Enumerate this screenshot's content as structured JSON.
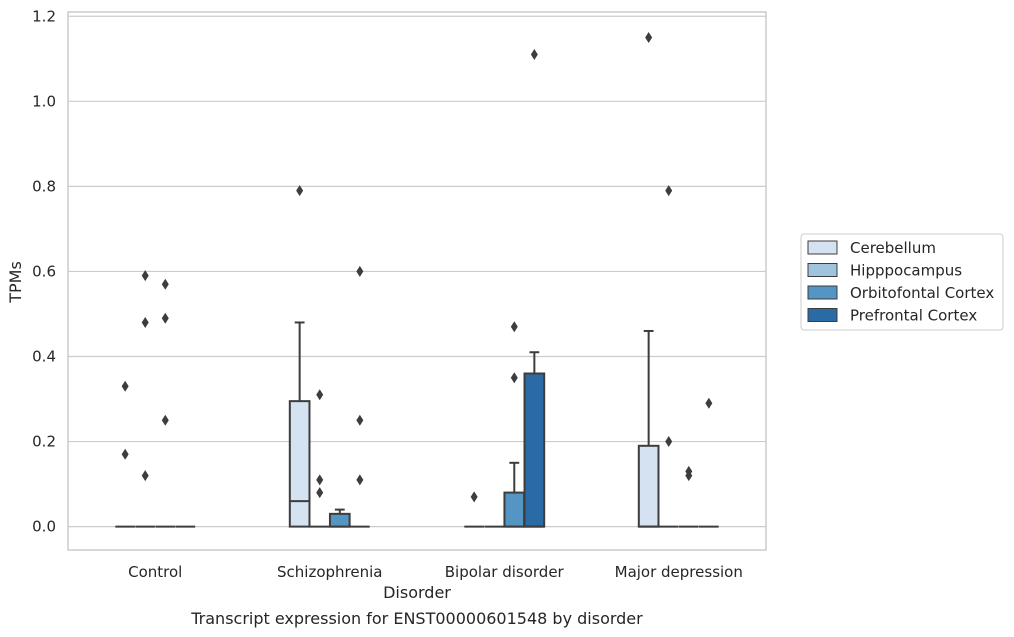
{
  "chart_data": {
    "type": "box",
    "xlabel": "Disorder",
    "ylabel": "TPMs",
    "caption": "Transcript expression for ENST00000601548 by disorder",
    "categories": [
      "Control",
      "Schizophrenia",
      "Bipolar disorder",
      "Major depression"
    ],
    "ylim": [
      -0.055,
      1.21
    ],
    "yticks": [
      0.0,
      0.2,
      0.4,
      0.6,
      0.8,
      1.0,
      1.2
    ],
    "ytick_labels": [
      "0.0",
      "0.2",
      "0.4",
      "0.6",
      "0.8",
      "1.0",
      "1.2"
    ],
    "grid": "horizontal",
    "legend_position": "right",
    "series": [
      {
        "name": "Cerebellum",
        "color": "#d4e2f1",
        "boxes": [
          {
            "q1": 0,
            "median": 0,
            "q3": 0,
            "whislo": 0,
            "whishi": 0,
            "fliers": [
              0.33,
              0.17
            ]
          },
          {
            "q1": 0,
            "median": 0.06,
            "q3": 0.295,
            "whislo": 0,
            "whishi": 0.48,
            "fliers": [
              0.79
            ]
          },
          {
            "q1": 0,
            "median": 0,
            "q3": 0,
            "whislo": 0,
            "whishi": 0,
            "fliers": [
              0.07
            ]
          },
          {
            "q1": 0,
            "median": 0,
            "q3": 0.19,
            "whislo": 0,
            "whishi": 0.46,
            "fliers": [
              1.15
            ]
          }
        ]
      },
      {
        "name": "Hipppocampus",
        "color": "#9fc4de",
        "boxes": [
          {
            "q1": 0,
            "median": 0,
            "q3": 0,
            "whislo": 0,
            "whishi": 0,
            "fliers": [
              0.59,
              0.48,
              0.12
            ]
          },
          {
            "q1": 0,
            "median": 0,
            "q3": 0,
            "whislo": 0,
            "whishi": 0,
            "fliers": [
              0.31,
              0.11,
              0.08
            ]
          },
          {
            "q1": 0,
            "median": 0,
            "q3": 0,
            "whislo": 0,
            "whishi": 0,
            "fliers": []
          },
          {
            "q1": 0,
            "median": 0,
            "q3": 0,
            "whislo": 0,
            "whishi": 0,
            "fliers": [
              0.79,
              0.2
            ]
          }
        ]
      },
      {
        "name": "Orbitofontal Cortex",
        "color": "#5595c4",
        "boxes": [
          {
            "q1": 0,
            "median": 0,
            "q3": 0,
            "whislo": 0,
            "whishi": 0,
            "fliers": [
              0.57,
              0.49,
              0.25
            ]
          },
          {
            "q1": 0,
            "median": 0,
            "q3": 0.03,
            "whislo": 0,
            "whishi": 0.04,
            "fliers": []
          },
          {
            "q1": 0,
            "median": 0,
            "q3": 0.08,
            "whislo": 0,
            "whishi": 0.15,
            "fliers": [
              0.47,
              0.35
            ]
          },
          {
            "q1": 0,
            "median": 0,
            "q3": 0,
            "whislo": 0,
            "whishi": 0,
            "fliers": [
              0.13,
              0.12
            ]
          }
        ]
      },
      {
        "name": "Prefrontal Cortex",
        "color": "#2a6aa5",
        "boxes": [
          {
            "q1": 0,
            "median": 0,
            "q3": 0,
            "whislo": 0,
            "whishi": 0,
            "fliers": []
          },
          {
            "q1": 0,
            "median": 0,
            "q3": 0,
            "whislo": 0,
            "whishi": 0,
            "fliers": [
              0.6,
              0.25,
              0.11
            ]
          },
          {
            "q1": 0,
            "median": 0,
            "q3": 0.36,
            "whislo": 0,
            "whishi": 0.41,
            "fliers": [
              1.11
            ]
          },
          {
            "q1": 0,
            "median": 0,
            "q3": 0,
            "whislo": 0,
            "whishi": 0,
            "fliers": [
              0.29
            ]
          }
        ]
      }
    ]
  }
}
